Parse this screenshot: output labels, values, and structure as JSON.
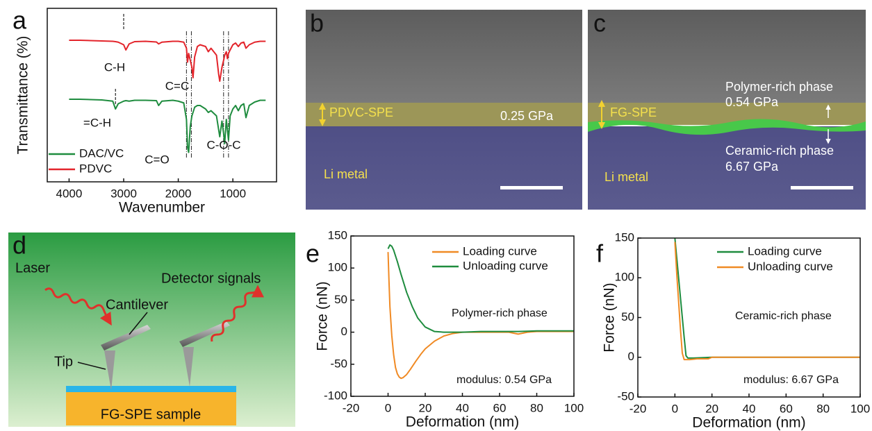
{
  "chart_data": [
    {
      "type": "line",
      "panel_label": "a",
      "x_label": "Wavenumber",
      "y_label": "Transmittance (%)",
      "xlim": [
        4400,
        200
      ],
      "ylim": [
        0,
        100
      ],
      "xticks": [
        4000,
        3000,
        2000,
        1000
      ],
      "series": [
        {
          "name": "DAC/VC",
          "color": "#1e8c3e",
          "x": [
            4000,
            3800,
            3600,
            3400,
            3200,
            3150,
            3100,
            3000,
            2960,
            2900,
            2800,
            2600,
            2400,
            2360,
            2300,
            2100,
            2000,
            1900,
            1850,
            1830,
            1810,
            1780,
            1750,
            1730,
            1700,
            1650,
            1600,
            1500,
            1450,
            1400,
            1300,
            1260,
            1240,
            1200,
            1170,
            1150,
            1120,
            1100,
            1080,
            1050,
            1000,
            950,
            900,
            850,
            800,
            760,
            700,
            600,
            500,
            400
          ],
          "values": [
            47.6,
            47.6,
            47.4,
            47.2,
            46.5,
            42,
            45,
            46.5,
            46.8,
            46.5,
            47,
            47,
            46.8,
            44,
            46.5,
            47,
            46.5,
            45.5,
            36,
            20,
            17,
            32,
            38,
            40,
            43,
            44,
            44,
            42,
            40,
            41,
            38,
            30,
            26,
            35,
            28,
            22,
            36,
            30,
            24,
            38,
            42,
            44,
            41,
            44,
            45,
            37,
            44,
            46,
            47,
            47
          ]
        },
        {
          "name": "PDVC",
          "color": "#e3242b",
          "x": [
            4000,
            3800,
            3600,
            3400,
            3200,
            3150,
            3100,
            3000,
            2960,
            2900,
            2800,
            2600,
            2400,
            2360,
            2300,
            2100,
            2000,
            1900,
            1850,
            1830,
            1810,
            1780,
            1750,
            1730,
            1700,
            1650,
            1600,
            1500,
            1450,
            1400,
            1300,
            1260,
            1240,
            1200,
            1170,
            1150,
            1120,
            1100,
            1080,
            1050,
            1000,
            950,
            900,
            850,
            800,
            760,
            700,
            600,
            500,
            400
          ],
          "values": [
            81.6,
            81.6,
            81.4,
            81.2,
            81,
            80.8,
            80.5,
            79,
            76,
            79.5,
            80.8,
            81,
            80.6,
            79.5,
            80.5,
            81,
            81,
            80.5,
            77,
            69,
            74,
            70,
            66,
            60,
            72,
            78,
            79,
            78,
            75,
            77,
            73,
            62,
            58,
            66,
            70,
            73,
            75,
            71,
            74,
            76,
            79,
            80,
            78,
            80,
            80.5,
            77,
            79,
            80.5,
            81,
            81
          ]
        }
      ],
      "annotations": [
        {
          "text": "C-H",
          "x": 3000
        },
        {
          "text": "=C-H",
          "x": 3150
        },
        {
          "text": "C=C"
        },
        {
          "text": "C=O"
        },
        {
          "text": "C-O-C"
        }
      ],
      "guide_lines": [
        1850,
        1760,
        1170,
        1080
      ]
    },
    {
      "type": "line",
      "panel_label": "e",
      "x_label": "Deformation (nm)",
      "y_label": "Force (nN)",
      "xlim": [
        -20,
        100
      ],
      "ylim": [
        -100,
        150
      ],
      "xticks": [
        -20,
        0,
        20,
        40,
        60,
        80,
        100
      ],
      "yticks": [
        -100,
        -50,
        0,
        50,
        100,
        150
      ],
      "series": [
        {
          "name": "Loading curve",
          "color": "#f08a24",
          "x": [
            0,
            0.5,
            1,
            2,
            3,
            4,
            5,
            6,
            7,
            8,
            10,
            12,
            15,
            18,
            20,
            25,
            30,
            35,
            40,
            50,
            60,
            65,
            70,
            75,
            80,
            90,
            100
          ],
          "values": [
            125,
            80,
            40,
            -5,
            -35,
            -55,
            -65,
            -70,
            -72,
            -71,
            -66,
            -58,
            -45,
            -33,
            -26,
            -14,
            -6,
            -2,
            0,
            0,
            0,
            0,
            -3,
            0,
            1,
            1,
            1
          ]
        },
        {
          "name": "Unloading curve",
          "color": "#1e8c3e",
          "x": [
            0,
            1,
            2,
            3,
            5,
            7,
            10,
            13,
            16,
            20,
            25,
            30,
            40,
            50,
            60,
            70,
            80,
            90,
            100
          ],
          "values": [
            130,
            136,
            134,
            128,
            110,
            90,
            62,
            40,
            22,
            8,
            1,
            0,
            0,
            1,
            1,
            1,
            2,
            2,
            2
          ]
        }
      ],
      "note": "Polymer-rich phase",
      "modulus_label": "modulus: 0.54 GPa"
    },
    {
      "type": "line",
      "panel_label": "f",
      "x_label": "Deformation (nm)",
      "y_label": "Force (nN)",
      "xlim": [
        -20,
        100
      ],
      "ylim": [
        -50,
        150
      ],
      "xticks": [
        -20,
        0,
        20,
        40,
        60,
        80,
        100
      ],
      "yticks": [
        -50,
        0,
        50,
        100,
        150
      ],
      "series": [
        {
          "name": "Loading curve",
          "color": "#1e8c3e",
          "x": [
            0,
            1,
            2,
            3,
            4,
            5,
            6,
            7,
            10,
            20,
            40,
            60,
            80,
            100
          ],
          "values": [
            150,
            125,
            100,
            75,
            50,
            25,
            2,
            -1,
            -1,
            0,
            0,
            0,
            0,
            0
          ]
        },
        {
          "name": "Unloading curve",
          "color": "#f08a24",
          "x": [
            0,
            1,
            2,
            3,
            4,
            5,
            8,
            12,
            18,
            20,
            40,
            60,
            80,
            100
          ],
          "values": [
            145,
            105,
            70,
            35,
            5,
            -3,
            -3,
            -2,
            -2,
            0,
            0,
            0,
            0,
            0
          ]
        }
      ],
      "note": "Ceramic-rich phase",
      "modulus_label": "modulus: 6.67 GPa"
    }
  ],
  "sem_images": [
    {
      "label": "b",
      "layer": "PDVC-SPE",
      "modulus": "0.25 GPa",
      "substrate": "Li metal"
    },
    {
      "label": "c",
      "layer": "FG-SPE",
      "upper_phase": "Polymer-rich phase",
      "upper_modulus": "0.54 GPa",
      "lower_phase": "Ceramic-rich phase",
      "lower_modulus": "6.67 GPa",
      "substrate": "Li metal"
    }
  ],
  "schematic": {
    "label": "d",
    "laser": "Laser",
    "detector": "Detector signals",
    "cantilever": "Cantilever",
    "tip": "Tip",
    "sample": "FG-SPE sample"
  }
}
